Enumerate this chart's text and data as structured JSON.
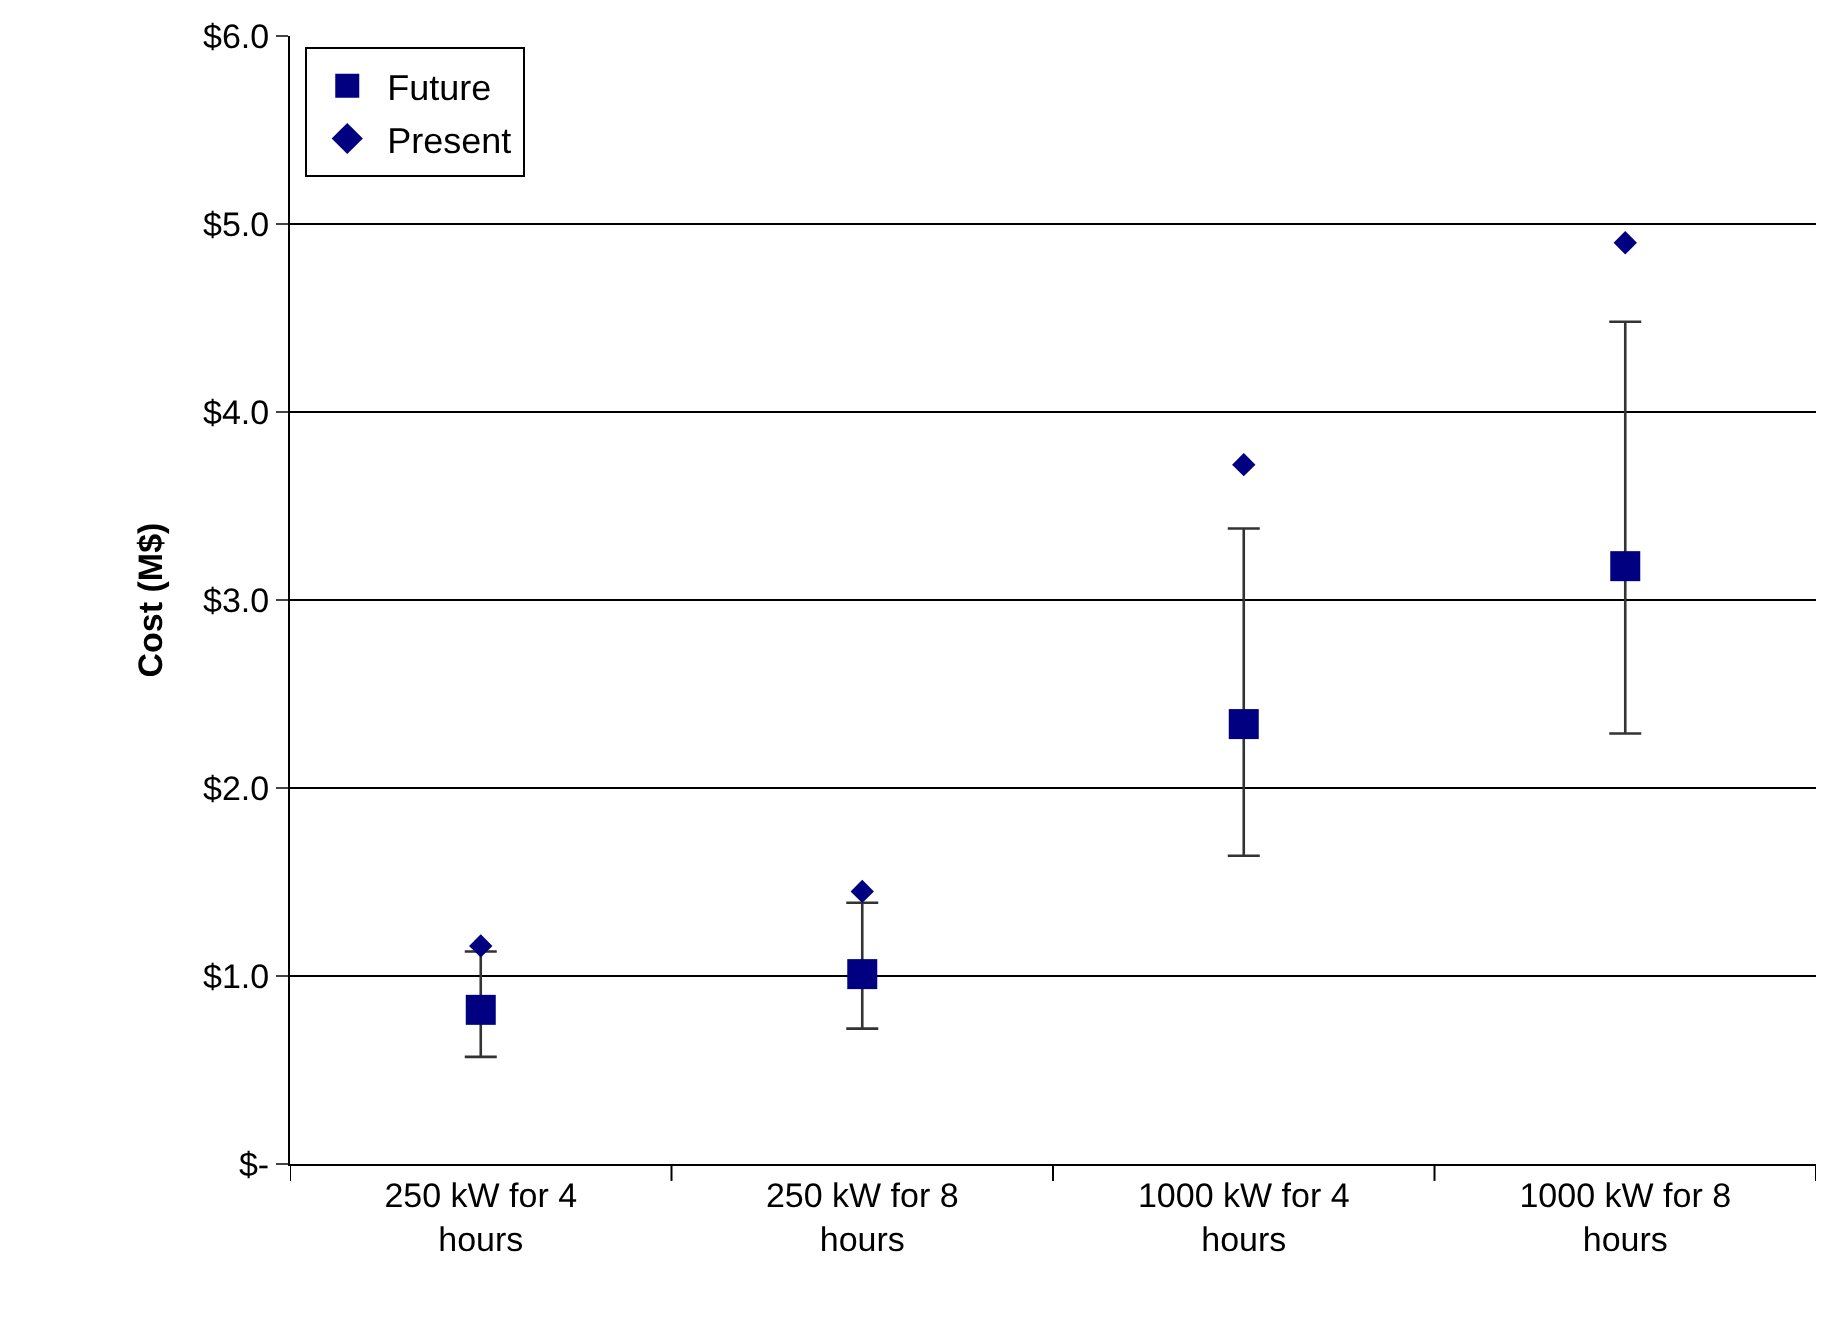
{
  "chart_data": {
    "type": "scatter",
    "ylabel": "Cost (M$)",
    "categories": [
      "250 kW for 4 hours",
      "250 kW for 8 hours",
      "1000 kW for 4 hours",
      "1000 kW for 8 hours"
    ],
    "series": [
      {
        "name": "Future",
        "color": "#000080",
        "marker": "square",
        "values": [
          0.82,
          1.01,
          2.34,
          3.18
        ],
        "errors": [
          [
            0.57,
            1.13
          ],
          [
            0.72,
            1.39
          ],
          [
            1.64,
            3.38
          ],
          [
            2.29,
            4.48
          ]
        ]
      },
      {
        "name": "Present",
        "color": "#000080",
        "marker": "diamond",
        "values": [
          1.16,
          1.45,
          3.72,
          4.9
        ]
      }
    ],
    "ylim": [
      0,
      6
    ],
    "yticks": [
      {
        "value": 0,
        "label": "$-"
      },
      {
        "value": 1,
        "label": "$1.0"
      },
      {
        "value": 2,
        "label": "$2.0"
      },
      {
        "value": 3,
        "label": "$3.0"
      },
      {
        "value": 4,
        "label": "$4.0"
      },
      {
        "value": 5,
        "label": "$5.0"
      },
      {
        "value": 6,
        "label": "$6.0"
      }
    ],
    "grid": "y",
    "legend": "top left"
  }
}
